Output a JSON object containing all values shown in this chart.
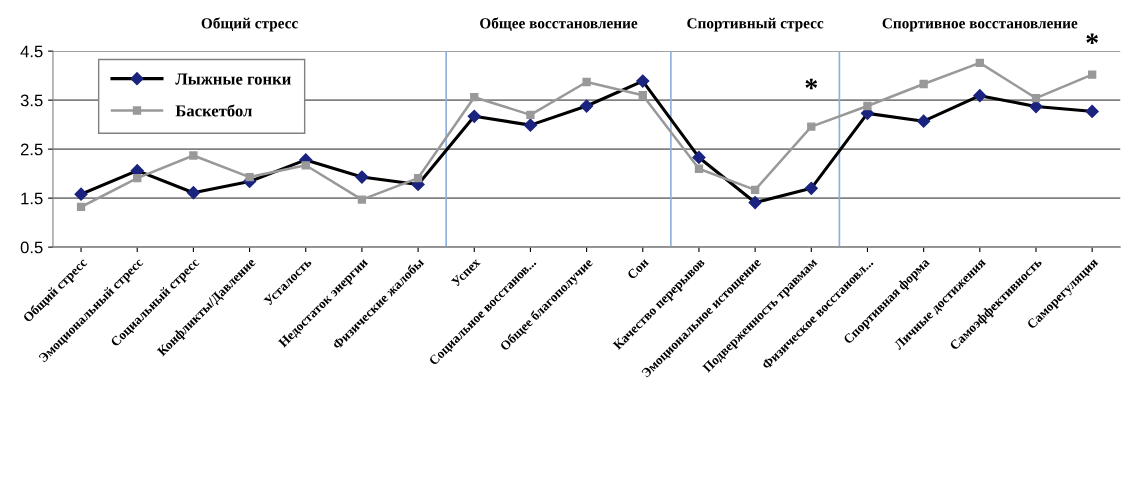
{
  "chart_data": {
    "type": "line",
    "categories": [
      "Общий стресс",
      "Эмоциональный стресс",
      "Социальный стресс",
      "Конфликты/Давление",
      "Усталость",
      "Недостаток энергии",
      "Физические жалобы",
      "Успех",
      "Социальное восстанов...",
      "Общее благополучие",
      "Сон",
      "Качество перерывов",
      "Эмоциональное истощение",
      "Подверженность травмам",
      "Физическое восстановл...",
      "Спортивная форма",
      "Личные достижения",
      "Самоэффективность",
      "Саморегуляция"
    ],
    "series": [
      {
        "name": "Лыжные гонки",
        "color": "#000000",
        "marker": "diamond",
        "values": [
          1.58,
          2.06,
          1.61,
          1.84,
          2.28,
          1.93,
          1.78,
          3.17,
          2.99,
          3.38,
          3.89,
          2.33,
          1.41,
          1.7,
          3.23,
          3.07,
          3.59,
          3.37,
          3.27
        ]
      },
      {
        "name": "Баскетбол",
        "color": "#999999",
        "marker": "square",
        "values": [
          1.32,
          1.91,
          2.37,
          1.93,
          2.17,
          1.47,
          1.91,
          3.56,
          3.2,
          3.87,
          3.6,
          2.1,
          1.67,
          2.96,
          3.38,
          3.83,
          4.26,
          3.54,
          4.02
        ]
      }
    ],
    "ylim": [
      0.5,
      4.5
    ],
    "yticks": [
      0.5,
      1.5,
      2.5,
      3.5,
      4.5
    ],
    "grid": "y",
    "legend": "top left",
    "annotations": [
      "Общий стресс",
      "Общее восстановление",
      "Спортивный стресс",
      "Спортивное восстановление",
      "*",
      "*"
    ]
  }
}
